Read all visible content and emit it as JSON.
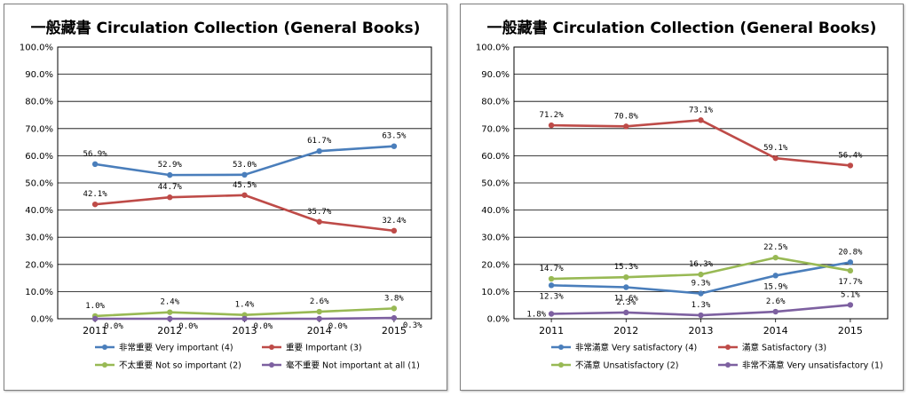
{
  "charts": [
    {
      "title": "一般藏書  Circulation Collection (General Books)",
      "chart_data": {
        "type": "line",
        "categories": [
          "2011",
          "2012",
          "2013",
          "2014",
          "2015"
        ],
        "ylim": [
          0,
          100
        ],
        "yticks": [
          "0.0%",
          "10.0%",
          "20.0%",
          "30.0%",
          "40.0%",
          "50.0%",
          "60.0%",
          "70.0%",
          "80.0%",
          "90.0%",
          "100.0%"
        ],
        "grid": true,
        "legend_position": "bottom",
        "series": [
          {
            "name": "非常重要 Very important (4)",
            "color": "#4a7ebb",
            "values": [
              56.9,
              52.9,
              53.0,
              61.7,
              63.5
            ],
            "labels": [
              "56.9%",
              "52.9%",
              "53.0%",
              "61.7%",
              "63.5%"
            ],
            "label_pos": [
              "above",
              "above",
              "above",
              "above",
              "above"
            ]
          },
          {
            "name": "重要 Important (3)",
            "color": "#be4b48",
            "values": [
              42.1,
              44.7,
              45.5,
              35.7,
              32.4
            ],
            "labels": [
              "42.1%",
              "44.7%",
              "45.5%",
              "35.7%",
              "32.4%"
            ],
            "label_pos": [
              "above",
              "above",
              "above",
              "above",
              "above"
            ]
          },
          {
            "name": "不太重要 Not so important (2)",
            "color": "#98b954",
            "values": [
              1.0,
              2.4,
              1.4,
              2.6,
              3.8
            ],
            "labels": [
              "1.0%",
              "2.4%",
              "1.4%",
              "2.6%",
              "3.8%"
            ],
            "label_pos": [
              "above",
              "above",
              "above",
              "above",
              "above"
            ]
          },
          {
            "name": "毫不重要 Not important at all (1)",
            "color": "#7d60a0",
            "values": [
              0.0,
              0.0,
              0.0,
              0.0,
              0.3
            ],
            "labels": [
              "0.0%",
              "0.0%",
              "0.0%",
              "0.0%",
              "0.3%"
            ],
            "label_pos": [
              "below",
              "below",
              "below",
              "below",
              "below"
            ]
          }
        ]
      }
    },
    {
      "title": "一般藏書  Circulation Collection (General Books)",
      "chart_data": {
        "type": "line",
        "categories": [
          "2011",
          "2012",
          "2013",
          "2014",
          "2015"
        ],
        "ylim": [
          0,
          100
        ],
        "yticks": [
          "0.0%",
          "10.0%",
          "20.0%",
          "30.0%",
          "40.0%",
          "50.0%",
          "60.0%",
          "70.0%",
          "80.0%",
          "90.0%",
          "100.0%"
        ],
        "grid": true,
        "legend_position": "bottom",
        "series": [
          {
            "name": "非常滿意  Very satisfactory (4)",
            "color": "#4a7ebb",
            "values": [
              12.3,
              11.6,
              9.3,
              15.9,
              20.8
            ],
            "labels": [
              "12.3%",
              "11.6%",
              "9.3%",
              "15.9%",
              "20.8%"
            ],
            "label_pos": [
              "below",
              "below",
              "above",
              "below",
              "above"
            ]
          },
          {
            "name": "滿意 Satisfactory (3)",
            "color": "#be4b48",
            "values": [
              71.2,
              70.8,
              73.1,
              59.1,
              56.4
            ],
            "labels": [
              "71.2%",
              "70.8%",
              "73.1%",
              "59.1%",
              "56.4%"
            ],
            "label_pos": [
              "above",
              "above",
              "above",
              "above",
              "above"
            ]
          },
          {
            "name": "不滿意  Unsatisfactory (2)",
            "color": "#98b954",
            "values": [
              14.7,
              15.3,
              16.3,
              22.5,
              17.7
            ],
            "labels": [
              "14.7%",
              "15.3%",
              "16.3%",
              "22.5%",
              "17.7%"
            ],
            "label_pos": [
              "above",
              "above",
              "above",
              "above",
              "below"
            ]
          },
          {
            "name": "非常不滿意  Very unsatisfactory (1)",
            "color": "#7d60a0",
            "values": [
              1.8,
              2.3,
              1.3,
              2.6,
              5.1
            ],
            "labels": [
              "1.8%",
              "2.3%",
              "1.3%",
              "2.6%",
              "5.1%"
            ],
            "label_pos": [
              "left",
              "above",
              "above",
              "above",
              "above"
            ]
          }
        ]
      }
    }
  ]
}
